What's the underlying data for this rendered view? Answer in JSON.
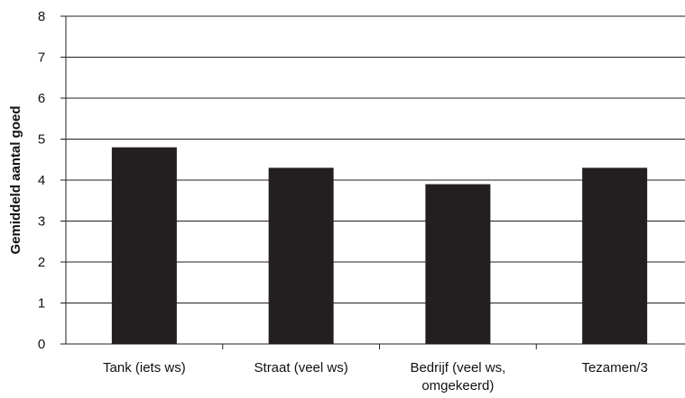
{
  "chart_data": {
    "type": "bar",
    "title": "",
    "xlabel": "",
    "ylabel": "Gemiddeld aantal goed",
    "ylim": [
      0,
      8
    ],
    "yticks": [
      "0",
      "1",
      "2",
      "3",
      "4",
      "5",
      "6",
      "7",
      "8"
    ],
    "categories": [
      [
        "Tank (iets ws)"
      ],
      [
        "Straat (veel ws)"
      ],
      [
        "Bedrijf (veel ws,",
        "omgekeerd)"
      ],
      [
        "Tezamen/3"
      ]
    ],
    "values": [
      4.8,
      4.3,
      3.9,
      4.3
    ],
    "grid": true,
    "legend": "none",
    "colors": {
      "bar": "#231f20",
      "axis": "#231f20",
      "grid": "#231f20"
    }
  }
}
